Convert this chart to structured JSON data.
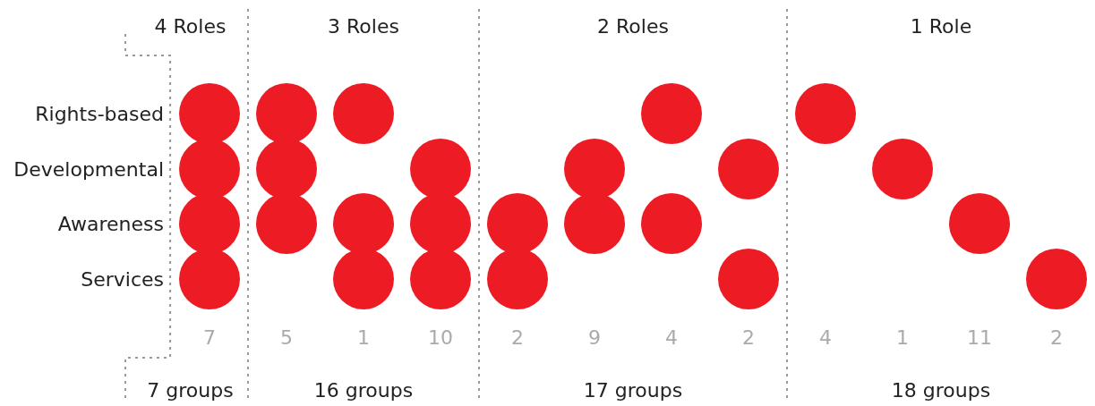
{
  "chart_data": {
    "type": "other",
    "categories": [
      null,
      null,
      null,
      null,
      null,
      null,
      null,
      null,
      null,
      null,
      null,
      null
    ],
    "values": [
      7,
      5,
      1,
      10,
      2,
      9,
      4,
      2,
      4,
      1,
      11,
      2
    ],
    "data_labels": true,
    "y_categories": [
      "Rights-based",
      "Developmental",
      "Awareness",
      "Services"
    ],
    "cells": [
      [
        true,
        true,
        true,
        null,
        null,
        null,
        true,
        null,
        true,
        null,
        null,
        null
      ],
      [
        true,
        true,
        null,
        true,
        null,
        true,
        null,
        true,
        null,
        true,
        null,
        null
      ],
      [
        true,
        true,
        true,
        true,
        true,
        true,
        true,
        null,
        null,
        null,
        true,
        null
      ],
      [
        true,
        null,
        true,
        true,
        true,
        null,
        null,
        true,
        null,
        null,
        null,
        true
      ]
    ],
    "color": "#ed1c24",
    "annotations": [
      "4 Roles",
      "3 Roles",
      "2 Roles",
      "1 Role",
      "7 groups",
      "16 groups",
      "17 groups",
      "18 groups"
    ]
  }
}
